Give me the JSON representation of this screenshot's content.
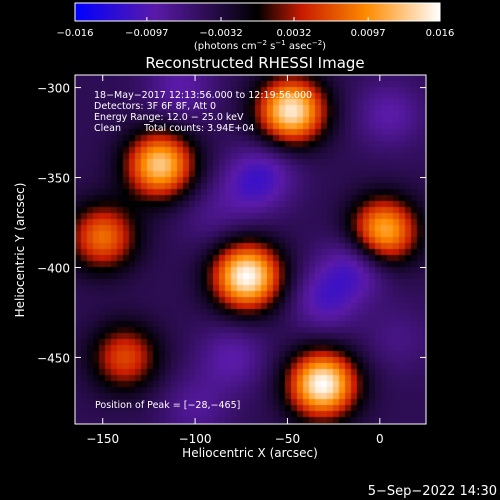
{
  "chart_data": {
    "type": "heatmap",
    "title": "Reconstructed RHESSI Image",
    "colorbar": {
      "min": -0.016,
      "max": 0.016,
      "ticks": [
        "−0.016",
        "−0.0097",
        "−0.0032",
        "0.0032",
        "0.0097",
        "0.016"
      ],
      "tick_values": [
        -0.016,
        -0.0097,
        -0.0032,
        0.0032,
        0.0097,
        0.016
      ],
      "unit_parts": [
        "(photons cm",
        "−2",
        " s",
        "−1",
        " asec",
        "−2",
        ")"
      ],
      "colors": [
        "#0000ff",
        "#5a1aa8",
        "#000000",
        "#c81a00",
        "#ff8c00",
        "#ffffff"
      ]
    },
    "xlabel": "Heliocentric X (arcsec)",
    "ylabel": "Heliocentric Y (arcsec)",
    "xlim": [
      -165,
      25
    ],
    "ylim": [
      -487,
      -293
    ],
    "xticks": [
      {
        "value": -150,
        "label": "−150"
      },
      {
        "value": -100,
        "label": "−100"
      },
      {
        "value": -50,
        "label": "−50"
      },
      {
        "value": 0,
        "label": "0"
      }
    ],
    "yticks": [
      {
        "value": -300,
        "label": "−300"
      },
      {
        "value": -350,
        "label": "−350"
      },
      {
        "value": -400,
        "label": "−400"
      },
      {
        "value": -450,
        "label": "−450"
      }
    ],
    "annotations": [
      "18−May−2017 12:13:56.000 to 12:19:56.000",
      "Detectors: 3F 6F 8F, Att 0",
      "Energy Range: 12.0 − 25.0 keV",
      "Clean",
      "Total counts: 3.94E+04"
    ],
    "peak_label": "Position of Peak = [−28,−465]",
    "peak_position": [
      -28,
      -465
    ],
    "sources": [
      {
        "x": -72,
        "y": -405,
        "value": 0.016
      },
      {
        "x": -31,
        "y": -465,
        "value": 0.016
      },
      {
        "x": -48,
        "y": -313,
        "value": 0.015
      },
      {
        "x": -119,
        "y": -343,
        "value": 0.013
      },
      {
        "x": 2,
        "y": -380,
        "value": 0.012
      },
      {
        "x": -150,
        "y": -383,
        "value": 0.008
      },
      {
        "x": -138,
        "y": -450,
        "value": 0.006
      },
      {
        "x": -92,
        "y": -372,
        "value": -0.007
      },
      {
        "x": -70,
        "y": -355,
        "value": -0.009
      },
      {
        "x": -30,
        "y": -418,
        "value": -0.01
      },
      {
        "x": -12,
        "y": -398,
        "value": -0.011
      },
      {
        "x": -108,
        "y": -300,
        "value": -0.009
      },
      {
        "x": -80,
        "y": -450,
        "value": -0.009
      },
      {
        "x": -100,
        "y": -478,
        "value": -0.008
      },
      {
        "x": 10,
        "y": -440,
        "value": -0.007
      },
      {
        "x": 5,
        "y": -315,
        "value": -0.009
      },
      {
        "x": -60,
        "y": -345,
        "value": -0.008
      }
    ]
  },
  "footer_timestamp": "5−Sep−2022 14:30"
}
